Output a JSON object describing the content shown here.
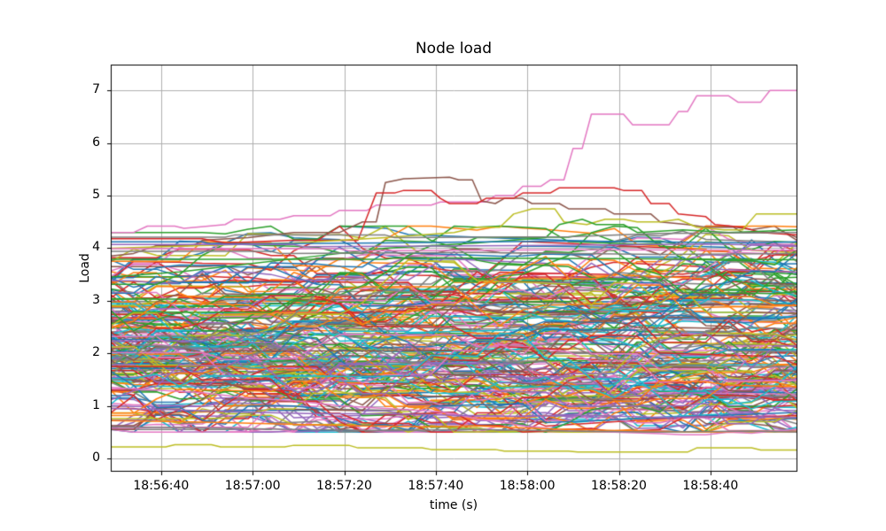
{
  "chart_data": {
    "type": "line",
    "title": "Node load",
    "xlabel": "time (s)",
    "ylabel": "Load",
    "x_axis": {
      "tick_labels": [
        "18:56:40",
        "18:57:00",
        "18:57:20",
        "18:57:40",
        "18:58:00",
        "18:58:20",
        "18:58:40"
      ],
      "tick_offsets_s": [
        11,
        31,
        51,
        71,
        91,
        111,
        131
      ],
      "range_s": [
        0,
        150
      ]
    },
    "y_axis": {
      "tick_labels": [
        "0",
        "1",
        "2",
        "3",
        "4",
        "5",
        "6",
        "7"
      ],
      "tick_values": [
        0,
        1,
        2,
        3,
        4,
        5,
        6,
        7
      ],
      "lim": [
        -0.253,
        7.494
      ]
    },
    "grid": {
      "show": true,
      "color": "#b0b0b0"
    },
    "style": {
      "line_width": 1.5,
      "spine_color": "#000000",
      "tick_length": 4,
      "sample_interval_s": 5,
      "background": "#ffffff"
    },
    "notable_series": [
      {
        "name": "pink-riser-to-7",
        "color": "#e377c2",
        "x": [
          0,
          5,
          8,
          14,
          16,
          25,
          27,
          37,
          40,
          48,
          50,
          56,
          58,
          70,
          72,
          82,
          84,
          88,
          90,
          94,
          96,
          99,
          101,
          103,
          105,
          112,
          114,
          122,
          124,
          126,
          128,
          133,
          135,
          137,
          142,
          144,
          150
        ],
        "y": [
          4.3,
          4.3,
          4.42,
          4.42,
          4.38,
          4.45,
          4.55,
          4.55,
          4.62,
          4.62,
          4.72,
          4.72,
          4.82,
          4.82,
          4.88,
          4.88,
          5.0,
          5.0,
          5.18,
          5.18,
          5.3,
          5.3,
          5.9,
          5.9,
          6.55,
          6.55,
          6.35,
          6.35,
          6.6,
          6.6,
          6.9,
          6.9,
          6.9,
          6.78,
          6.78,
          7.0,
          7.0
        ]
      },
      {
        "name": "brown-peak-5.35",
        "color": "#8c564b",
        "x": [
          0,
          5,
          10,
          18,
          20,
          30,
          40,
          50,
          55,
          58,
          60,
          64,
          74,
          76,
          79,
          81,
          84,
          86,
          90,
          92,
          98,
          100,
          108,
          110,
          118,
          120,
          126,
          130,
          136,
          138,
          144,
          146,
          150
        ],
        "y": [
          3.85,
          3.9,
          4.05,
          4.05,
          4.15,
          4.2,
          4.3,
          4.3,
          4.5,
          4.5,
          5.25,
          5.32,
          5.35,
          5.3,
          5.3,
          4.9,
          4.85,
          4.95,
          4.95,
          4.85,
          4.85,
          4.75,
          4.75,
          4.65,
          4.65,
          4.5,
          4.45,
          4.4,
          4.4,
          4.3,
          4.3,
          4.35,
          4.2
        ]
      },
      {
        "name": "red-peak-5.15",
        "color": "#d62728",
        "x": [
          0,
          20,
          25,
          40,
          54,
          56,
          58,
          62,
          64,
          70,
          72,
          74,
          80,
          82,
          88,
          90,
          96,
          98,
          110,
          112,
          116,
          118,
          122,
          124,
          130,
          132,
          138,
          142,
          150
        ],
        "y": [
          4.18,
          4.18,
          4.1,
          4.15,
          4.15,
          4.6,
          5.05,
          5.05,
          5.1,
          5.1,
          4.95,
          4.85,
          4.85,
          4.95,
          4.95,
          5.05,
          5.05,
          5.15,
          5.15,
          5.1,
          5.1,
          4.85,
          4.85,
          4.65,
          4.6,
          4.45,
          4.4,
          4.3,
          4.25
        ]
      },
      {
        "name": "olive-high-4.65",
        "color": "#bcbd22",
        "x": [
          0,
          20,
          40,
          60,
          75,
          80,
          85,
          88,
          92,
          97,
          99,
          104,
          108,
          112,
          115,
          120,
          124,
          128,
          134,
          138,
          141,
          147,
          150
        ],
        "y": [
          4.0,
          4.05,
          4.1,
          4.2,
          4.3,
          4.4,
          4.4,
          4.65,
          4.75,
          4.75,
          4.5,
          4.45,
          4.55,
          4.55,
          4.5,
          4.5,
          4.55,
          4.4,
          4.35,
          4.35,
          4.65,
          4.65,
          4.65
        ]
      },
      {
        "name": "green-peak-4.55",
        "color": "#2ca02c",
        "x": [
          0,
          15,
          30,
          45,
          60,
          80,
          95,
          98,
          103,
          106,
          112,
          115,
          125,
          135,
          150
        ],
        "y": [
          3.45,
          3.55,
          3.7,
          3.85,
          4.0,
          4.1,
          4.2,
          4.45,
          4.55,
          4.45,
          4.45,
          4.3,
          4.35,
          4.3,
          4.35
        ]
      },
      {
        "name": "olive-low-0.2",
        "color": "#bcbd22",
        "x": [
          0,
          12,
          14,
          22,
          24,
          38,
          40,
          52,
          54,
          68,
          70,
          84,
          86,
          100,
          102,
          126,
          128,
          140,
          142,
          150
        ],
        "y": [
          0.22,
          0.22,
          0.26,
          0.26,
          0.22,
          0.22,
          0.25,
          0.25,
          0.2,
          0.2,
          0.17,
          0.17,
          0.14,
          0.14,
          0.12,
          0.12,
          0.2,
          0.2,
          0.16,
          0.16
        ]
      },
      {
        "name": "pink-low-descending",
        "color": "#e377c2",
        "x": [
          0,
          10,
          20,
          30,
          40,
          50,
          60,
          70,
          75,
          80,
          85,
          90,
          95,
          100,
          110,
          120,
          125,
          130,
          135,
          140,
          145,
          150
        ],
        "y": [
          1.35,
          1.3,
          1.25,
          1.15,
          1.1,
          1.0,
          0.95,
          0.9,
          0.85,
          0.75,
          0.7,
          0.62,
          0.58,
          0.52,
          0.5,
          0.47,
          0.45,
          0.45,
          0.5,
          0.48,
          0.52,
          0.55
        ]
      },
      {
        "name": "orange-low",
        "color": "#ff7f0e",
        "x": [
          0,
          15,
          25,
          40,
          55,
          70,
          80,
          90,
          100,
          115,
          130,
          140,
          150
        ],
        "y": [
          0.72,
          0.7,
          0.68,
          0.65,
          0.62,
          0.6,
          0.62,
          0.58,
          0.55,
          0.52,
          0.5,
          0.52,
          0.5
        ]
      },
      {
        "name": "gray-low",
        "color": "#7f7f7f",
        "x": [
          0,
          20,
          40,
          60,
          80,
          100,
          120,
          140,
          150
        ],
        "y": [
          0.6,
          0.58,
          0.55,
          0.53,
          0.55,
          0.52,
          0.5,
          0.52,
          0.5
        ]
      },
      {
        "name": "purple-low",
        "color": "#9467bd",
        "x": [
          0,
          15,
          30,
          45,
          60,
          75,
          90,
          105,
          120,
          135,
          150
        ],
        "y": [
          0.95,
          0.92,
          0.88,
          0.85,
          0.85,
          0.82,
          0.8,
          0.82,
          0.78,
          0.8,
          0.78
        ]
      },
      {
        "name": "gray-flat-a",
        "color": "#7f7f7f",
        "x": [
          0,
          25,
          27,
          60,
          62,
          100,
          120,
          150
        ],
        "y": [
          4.21,
          4.21,
          4.25,
          4.25,
          4.2,
          4.22,
          4.28,
          4.3
        ]
      },
      {
        "name": "blue-top-flat",
        "color": "#1f77b4",
        "x": [
          0,
          20,
          22,
          60,
          100,
          140,
          150
        ],
        "y": [
          4.12,
          4.12,
          4.08,
          4.1,
          4.14,
          4.1,
          4.12
        ]
      },
      {
        "name": "purple-flat",
        "color": "#9467bd",
        "x": [
          0,
          40,
          42,
          90,
          130,
          150
        ],
        "y": [
          4.07,
          4.07,
          4.03,
          4.05,
          4.08,
          4.05
        ]
      },
      {
        "name": "pink-flat",
        "color": "#e377c2",
        "x": [
          0,
          50,
          52,
          100,
          150
        ],
        "y": [
          3.99,
          3.99,
          3.95,
          3.97,
          3.96
        ]
      },
      {
        "name": "gray-flat-b",
        "color": "#7f7f7f",
        "x": [
          0,
          35,
          37,
          80,
          120,
          150
        ],
        "y": [
          3.94,
          3.94,
          3.9,
          3.92,
          3.88,
          3.9
        ]
      },
      {
        "name": "green-flat",
        "color": "#2ca02c",
        "x": [
          0,
          60,
          62,
          110,
          150
        ],
        "y": [
          3.79,
          3.79,
          3.82,
          3.8,
          3.78
        ]
      }
    ],
    "background_series": {
      "description": "~200 unlabeled node-load traces forming a dense band between ~0.5 and ~4.4 (densest between 1 and 3), changing in steps every ~5 s",
      "count": 195,
      "seed": 12,
      "value_range": [
        0.5,
        4.42
      ],
      "start_mean": 2.15,
      "start_sd": 0.9,
      "hold_probability": 0.5,
      "max_step": 0.45,
      "mean_reversion": 0.02,
      "colors": [
        "#1f77b4",
        "#ff7f0e",
        "#2ca02c",
        "#d62728",
        "#9467bd",
        "#8c564b",
        "#e377c2",
        "#7f7f7f",
        "#bcbd22",
        "#17becf"
      ]
    }
  }
}
